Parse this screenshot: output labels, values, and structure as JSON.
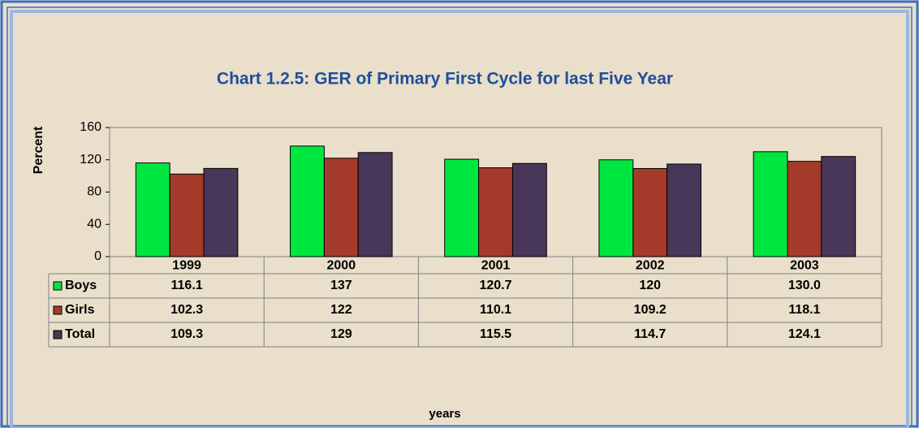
{
  "chart_data": {
    "type": "bar",
    "title": "Chart 1.2.5: GER  of  Primary First Cycle for last Five Year",
    "y_label": "Percent",
    "x_label": "years",
    "categories": [
      "1999",
      "2000",
      "2001",
      "2002",
      "2003"
    ],
    "series": [
      {
        "name": "Boys",
        "color": "#00e640",
        "values": [
          116.1,
          137,
          120.7,
          120,
          130.0
        ],
        "value_labels": [
          "116.1",
          "137",
          "120.7",
          "120",
          "130.0"
        ]
      },
      {
        "name": "Girls",
        "color": "#a33a2a",
        "values": [
          102.3,
          122,
          110.1,
          109.2,
          118.1
        ]
      },
      {
        "name": "Total",
        "color": "#483758",
        "values": [
          109.3,
          129,
          115.5,
          114.7,
          124.1
        ]
      }
    ],
    "ylim": [
      0,
      160
    ],
    "yticks": [
      0,
      40,
      80,
      120,
      160
    ],
    "grid": false
  }
}
